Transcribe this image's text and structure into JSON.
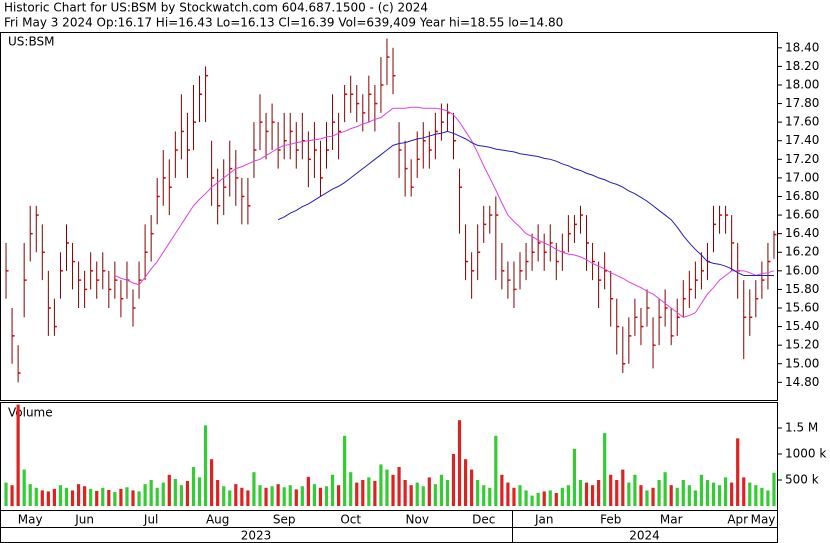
{
  "chart_data": {
    "type": "ohlc",
    "title": "Historic Chart for US:BSM by Stockwatch.com 604.687.1500 - (c) 2024",
    "subtitle": "Fri May  3 2024  Op:16.17  Hi=16.43  Lo=16.13  Cl=16.39  Vol=639,409  Year hi=18.55  lo=14.80",
    "symbol": "US:BSM",
    "bar_color": "#800000",
    "close_color": "#dd0000",
    "categories": [
      null,
      null,
      null,
      null,
      "May",
      null,
      null,
      null,
      null,
      null,
      null,
      null,
      null,
      "Jun",
      null,
      null,
      null,
      null,
      null,
      null,
      null,
      null,
      null,
      null,
      "Jul",
      null,
      null,
      null,
      null,
      null,
      null,
      null,
      null,
      null,
      null,
      "Aug",
      null,
      null,
      null,
      null,
      null,
      null,
      null,
      null,
      null,
      null,
      "Sep",
      null,
      null,
      null,
      null,
      null,
      null,
      null,
      null,
      null,
      null,
      "Oct",
      null,
      null,
      null,
      null,
      null,
      null,
      null,
      null,
      null,
      null,
      "Nov",
      null,
      null,
      null,
      null,
      null,
      null,
      null,
      null,
      null,
      null,
      "Dec",
      null,
      null,
      null,
      null,
      null,
      null,
      null,
      null,
      null,
      "Jan",
      null,
      null,
      null,
      null,
      null,
      null,
      null,
      null,
      null,
      null,
      "Feb",
      null,
      null,
      null,
      null,
      null,
      null,
      null,
      null,
      null,
      "Mar",
      null,
      null,
      null,
      null,
      null,
      null,
      null,
      null,
      null,
      null,
      "Apr",
      null,
      null,
      null,
      null,
      null,
      "May"
    ],
    "year_labels": [
      "2023",
      "2024"
    ],
    "high": [
      16.3,
      15.6,
      15.2,
      16.3,
      16.7,
      16.7,
      16.5,
      16.0,
      15.7,
      16.2,
      16.5,
      16.3,
      16.1,
      16.0,
      16.2,
      16.1,
      16.2,
      16.0,
      16.1,
      15.9,
      16.1,
      15.8,
      16.1,
      16.5,
      16.6,
      17.0,
      17.3,
      17.2,
      17.5,
      17.9,
      17.7,
      18.0,
      18.1,
      18.2,
      17.4,
      17.1,
      17.2,
      17.4,
      17.3,
      17.0,
      17.0,
      17.6,
      17.9,
      17.7,
      17.8,
      17.6,
      17.7,
      17.7,
      17.6,
      17.7,
      17.5,
      17.6,
      17.4,
      17.6,
      17.9,
      17.7,
      18.0,
      18.1,
      18.0,
      17.9,
      18.1,
      18.0,
      18.3,
      18.5,
      18.4,
      17.6,
      17.4,
      17.2,
      17.5,
      17.6,
      17.5,
      17.7,
      17.8,
      17.8,
      17.7,
      17.1,
      16.5,
      16.2,
      16.5,
      16.7,
      16.7,
      16.8,
      16.3,
      16.1,
      16.1,
      16.2,
      16.3,
      16.4,
      16.5,
      16.4,
      16.5,
      16.3,
      16.4,
      16.6,
      16.6,
      16.7,
      16.6,
      16.3,
      16.1,
      16.2,
      16.0,
      15.7,
      15.4,
      15.5,
      15.7,
      15.6,
      15.8,
      15.5,
      15.7,
      15.8,
      15.6,
      15.7,
      15.9,
      16.0,
      16.1,
      16.2,
      16.3,
      16.7,
      16.7,
      16.7,
      16.6,
      16.3,
      15.9,
      15.8,
      15.9,
      16.1,
      16.3,
      16.43
    ],
    "low": [
      15.7,
      15.0,
      14.8,
      15.5,
      16.1,
      16.2,
      15.9,
      15.3,
      15.3,
      15.7,
      16.0,
      15.8,
      15.6,
      15.6,
      15.8,
      15.7,
      15.8,
      15.6,
      15.7,
      15.5,
      15.7,
      15.4,
      15.7,
      15.9,
      16.1,
      16.5,
      16.7,
      16.6,
      17.0,
      17.2,
      17.0,
      17.3,
      17.6,
      17.6,
      16.7,
      16.5,
      16.6,
      16.8,
      16.7,
      16.5,
      16.5,
      17.0,
      17.3,
      17.2,
      17.3,
      17.1,
      17.2,
      17.2,
      17.1,
      17.2,
      16.9,
      17.0,
      16.8,
      17.1,
      17.3,
      17.2,
      17.6,
      17.7,
      17.6,
      17.5,
      17.6,
      17.5,
      17.7,
      18.0,
      17.9,
      17.0,
      16.8,
      16.8,
      17.0,
      17.1,
      17.1,
      17.2,
      17.4,
      17.5,
      17.2,
      16.4,
      15.9,
      15.7,
      15.9,
      16.3,
      16.4,
      15.9,
      15.8,
      15.7,
      15.6,
      15.8,
      15.9,
      16.0,
      16.1,
      16.0,
      16.1,
      15.9,
      16.0,
      16.2,
      16.3,
      16.4,
      16.0,
      15.9,
      15.6,
      15.8,
      15.4,
      15.1,
      14.9,
      15.0,
      15.3,
      15.2,
      15.4,
      14.95,
      15.2,
      15.4,
      15.2,
      15.3,
      15.5,
      15.6,
      15.7,
      15.8,
      15.9,
      16.2,
      16.4,
      16.4,
      16.0,
      15.7,
      15.05,
      15.3,
      15.5,
      15.7,
      15.8,
      16.13
    ],
    "close": [
      16.0,
      15.3,
      14.9,
      15.9,
      16.4,
      16.6,
      16.2,
      15.6,
      15.4,
      16.0,
      16.3,
      16.1,
      15.9,
      15.8,
      16.0,
      15.9,
      16.0,
      15.8,
      15.9,
      15.7,
      15.9,
      15.6,
      15.9,
      16.2,
      16.4,
      16.8,
      17.0,
      16.9,
      17.3,
      17.5,
      17.3,
      17.6,
      17.9,
      18.1,
      17.0,
      16.7,
      16.9,
      17.1,
      17.0,
      16.8,
      16.7,
      17.3,
      17.6,
      17.5,
      17.6,
      17.3,
      17.4,
      17.5,
      17.3,
      17.4,
      17.2,
      17.3,
      17.0,
      17.3,
      17.6,
      17.5,
      17.9,
      17.9,
      17.8,
      17.7,
      17.9,
      17.8,
      18.0,
      18.3,
      18.1,
      17.3,
      17.1,
      16.9,
      17.2,
      17.4,
      17.3,
      17.5,
      17.6,
      17.7,
      17.4,
      16.9,
      16.1,
      16.0,
      16.2,
      16.5,
      16.6,
      16.6,
      16.0,
      15.9,
      15.8,
      16.0,
      16.1,
      16.2,
      16.3,
      16.2,
      16.3,
      16.1,
      16.2,
      16.4,
      16.5,
      16.6,
      16.3,
      16.1,
      15.9,
      16.0,
      15.7,
      15.4,
      15.0,
      15.3,
      15.5,
      15.4,
      15.6,
      15.2,
      15.5,
      15.6,
      15.3,
      15.5,
      15.7,
      15.8,
      15.9,
      16.0,
      16.1,
      16.5,
      16.6,
      16.6,
      16.3,
      16.0,
      15.5,
      15.5,
      15.7,
      15.9,
      16.1,
      16.39
    ],
    "series": [
      {
        "color": "#e040e0",
        "values": [
          null,
          null,
          null,
          null,
          null,
          null,
          null,
          null,
          null,
          null,
          null,
          null,
          null,
          null,
          null,
          null,
          null,
          null,
          15.95,
          15.92,
          15.9,
          15.87,
          15.85,
          15.93,
          16.02,
          16.1,
          16.2,
          16.3,
          16.4,
          16.5,
          16.6,
          16.7,
          16.77,
          16.83,
          16.9,
          16.95,
          17.0,
          17.05,
          17.1,
          17.12,
          17.15,
          17.18,
          17.2,
          17.24,
          17.28,
          17.32,
          17.35,
          17.36,
          17.38,
          17.39,
          17.4,
          17.41,
          17.42,
          17.44,
          17.45,
          17.48,
          17.5,
          17.53,
          17.55,
          17.58,
          17.6,
          17.63,
          17.65,
          17.7,
          17.75,
          17.75,
          17.75,
          17.76,
          17.76,
          17.75,
          17.75,
          17.75,
          17.74,
          17.72,
          17.68,
          17.6,
          17.5,
          17.4,
          17.27,
          17.13,
          17.0,
          16.87,
          16.73,
          16.6,
          16.53,
          16.47,
          16.4,
          16.37,
          16.33,
          16.3,
          16.27,
          16.23,
          16.2,
          16.18,
          16.17,
          16.15,
          16.12,
          16.08,
          16.05,
          16.02,
          15.98,
          15.95,
          15.92,
          15.88,
          15.85,
          15.82,
          15.78,
          15.75,
          15.7,
          15.65,
          15.6,
          15.55,
          15.5,
          15.52,
          15.55,
          15.65,
          15.75,
          15.82,
          15.9,
          15.95,
          16.0,
          16.0,
          16.0,
          15.98,
          15.95,
          15.97,
          15.98,
          16.0
        ]
      },
      {
        "color": "#2020c0",
        "values": [
          null,
          null,
          null,
          null,
          null,
          null,
          null,
          null,
          null,
          null,
          null,
          null,
          null,
          null,
          null,
          null,
          null,
          null,
          null,
          null,
          null,
          null,
          null,
          null,
          null,
          null,
          null,
          null,
          null,
          null,
          null,
          null,
          null,
          null,
          null,
          null,
          null,
          null,
          null,
          null,
          null,
          null,
          null,
          null,
          null,
          16.55,
          16.58,
          16.62,
          16.65,
          16.69,
          16.72,
          16.76,
          16.8,
          16.84,
          16.88,
          16.91,
          16.95,
          17.0,
          17.05,
          17.1,
          17.15,
          17.2,
          17.25,
          17.3,
          17.35,
          17.37,
          17.38,
          17.4,
          17.42,
          17.43,
          17.45,
          17.47,
          17.48,
          17.5,
          17.48,
          17.45,
          17.42,
          17.38,
          17.35,
          17.34,
          17.33,
          17.31,
          17.3,
          17.29,
          17.28,
          17.26,
          17.25,
          17.24,
          17.23,
          17.21,
          17.2,
          17.18,
          17.15,
          17.13,
          17.1,
          17.08,
          17.05,
          17.03,
          17.0,
          16.98,
          16.95,
          16.93,
          16.9,
          16.86,
          16.83,
          16.79,
          16.75,
          16.7,
          16.65,
          16.6,
          16.55,
          16.47,
          16.38,
          16.3,
          16.23,
          16.17,
          16.1,
          16.08,
          16.07,
          16.05,
          16.02,
          15.98,
          15.95,
          15.95,
          15.95,
          15.95,
          15.95,
          15.95
        ]
      }
    ],
    "ylim": [
      14.61,
      18.57
    ],
    "yticks": [
      {
        "value": 14.8,
        "label": "14.80"
      },
      {
        "value": 15.0,
        "label": "15.00"
      },
      {
        "value": 15.2,
        "label": "15.20"
      },
      {
        "value": 15.4,
        "label": "15.40"
      },
      {
        "value": 15.6,
        "label": "15.60"
      },
      {
        "value": 15.8,
        "label": "15.80"
      },
      {
        "value": 16.0,
        "label": "16.00"
      },
      {
        "value": 16.2,
        "label": "16.20"
      },
      {
        "value": 16.4,
        "label": "16.40"
      },
      {
        "value": 16.6,
        "label": "16.60"
      },
      {
        "value": 16.8,
        "label": "16.80"
      },
      {
        "value": 17.0,
        "label": "17.00"
      },
      {
        "value": 17.2,
        "label": "17.20"
      },
      {
        "value": 17.4,
        "label": "17.40"
      },
      {
        "value": 17.6,
        "label": "17.60"
      },
      {
        "value": 17.8,
        "label": "17.80"
      },
      {
        "value": 18.0,
        "label": "18.00"
      },
      {
        "value": 18.2,
        "label": "18.20"
      },
      {
        "value": 18.4,
        "label": "18.40"
      }
    ],
    "volume": {
      "label": "Volume",
      "up_color": "#33cc33",
      "down_color": "#dd2222",
      "values": [
        450000,
        400000,
        1950000,
        700000,
        420000,
        350000,
        300000,
        280000,
        330000,
        400000,
        350000,
        300000,
        420000,
        380000,
        330000,
        290000,
        350000,
        310000,
        270000,
        330000,
        360000,
        300000,
        280000,
        420000,
        500000,
        350000,
        450000,
        600000,
        520000,
        400000,
        480000,
        750000,
        550000,
        1550000,
        900000,
        500000,
        380000,
        300000,
        420000,
        350000,
        300000,
        650000,
        400000,
        350000,
        380000,
        420000,
        360000,
        400000,
        320000,
        380000,
        560000,
        420000,
        350000,
        380000,
        600000,
        400000,
        1350000,
        650000,
        450000,
        500000,
        550000,
        480000,
        800000,
        700000,
        600000,
        750000,
        500000,
        400000,
        450000,
        380000,
        550000,
        420000,
        600000,
        500000,
        1000000,
        1650000,
        900000,
        700000,
        500000,
        400000,
        350000,
        1350000,
        600000,
        450000,
        350000,
        400000,
        300000,
        200000,
        250000,
        280000,
        300000,
        250000,
        350000,
        400000,
        1100000,
        500000,
        450000,
        400000,
        500000,
        1400000,
        600000,
        500000,
        700000,
        450000,
        600000,
        400000,
        300000,
        350000,
        500000,
        650000,
        400000,
        350000,
        500000,
        400000,
        300000,
        600000,
        500000,
        450000,
        400000,
        550000,
        450000,
        1300000,
        550000,
        450000,
        400000,
        350000,
        300000,
        639409
      ],
      "ylim": [
        0,
        2000000
      ],
      "yticks": [
        {
          "value": 500000,
          "label": "500 k"
        },
        {
          "value": 1000000,
          "label": "1000 k"
        },
        {
          "value": 1500000,
          "label": "1.5 M"
        }
      ]
    }
  }
}
